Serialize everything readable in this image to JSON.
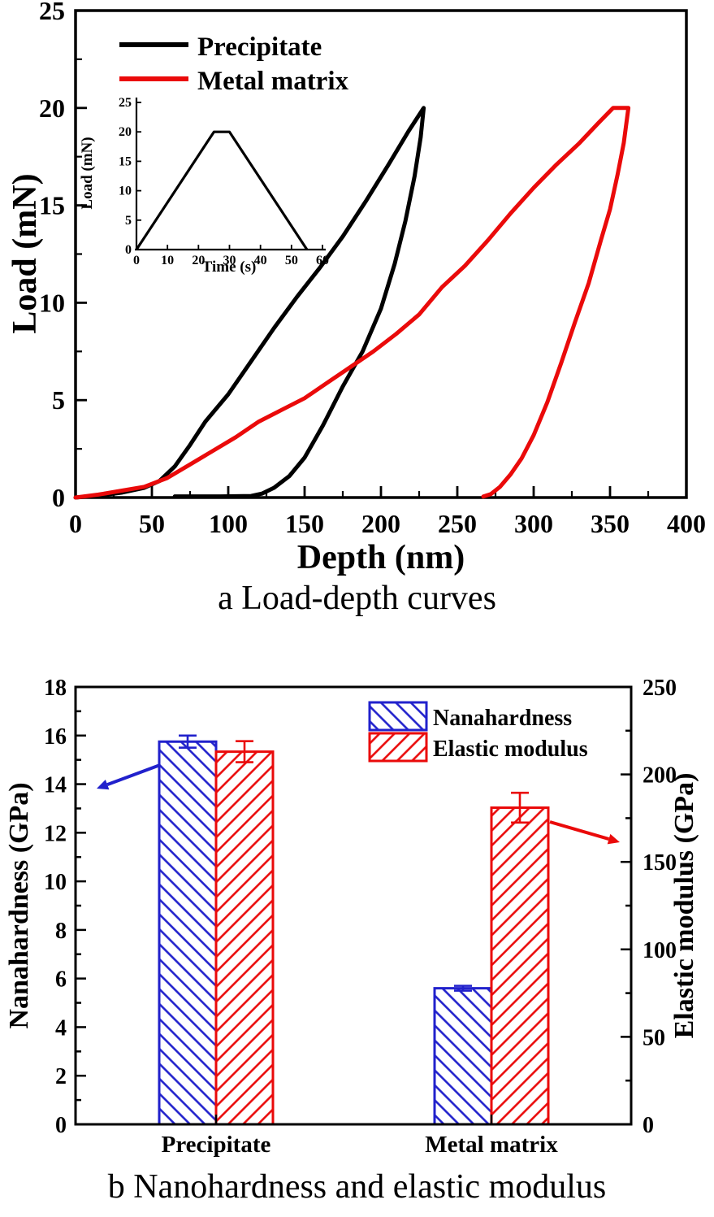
{
  "captions": {
    "a": "a Load-depth curves",
    "b": "b Nanohardness and elastic modulus"
  },
  "colors": {
    "black": "#000000",
    "red": "#ea0a0a",
    "blue": "#2121cc"
  },
  "chart_data": [
    {
      "id": "a",
      "type": "line",
      "title": "",
      "xlabel": "Depth (nm)",
      "ylabel": "Load (mN)",
      "xlim": [
        0,
        400
      ],
      "ylim": [
        0,
        25
      ],
      "x_ticks": [
        0,
        50,
        100,
        150,
        200,
        250,
        300,
        350,
        400
      ],
      "y_ticks": [
        0,
        5,
        10,
        15,
        20,
        25
      ],
      "x_minor_step": 25,
      "y_minor_step": 2.5,
      "legend_position": "top-left-inside",
      "grid": false,
      "series": [
        {
          "name": "Precipitate",
          "color": "#000000",
          "points": [
            [
              0,
              0
            ],
            [
              15,
              0.1
            ],
            [
              30,
              0.25
            ],
            [
              45,
              0.5
            ],
            [
              55,
              0.85
            ],
            [
              65,
              1.6
            ],
            [
              75,
              2.7
            ],
            [
              85,
              3.9
            ],
            [
              100,
              5.3
            ],
            [
              115,
              7.0
            ],
            [
              130,
              8.7
            ],
            [
              145,
              10.3
            ],
            [
              160,
              11.8
            ],
            [
              175,
              13.4
            ],
            [
              190,
              15.2
            ],
            [
              205,
              17.1
            ],
            [
              218,
              18.8
            ],
            [
              228,
              20
            ],
            [
              226,
              18.5
            ],
            [
              222,
              16.5
            ],
            [
              216,
              14.2
            ],
            [
              209,
              12.0
            ],
            [
              200,
              9.7
            ],
            [
              188,
              7.5
            ],
            [
              175,
              5.7
            ],
            [
              162,
              3.7
            ],
            [
              150,
              2.05
            ],
            [
              140,
              1.1
            ],
            [
              130,
              0.5
            ],
            [
              122,
              0.2
            ],
            [
              115,
              0.08
            ],
            [
              95,
              0.06
            ],
            [
              65,
              0.06
            ]
          ]
        },
        {
          "name": "Metal matrix",
          "color": "#ea0a0a",
          "points": [
            [
              0,
              0
            ],
            [
              15,
              0.15
            ],
            [
              30,
              0.35
            ],
            [
              45,
              0.55
            ],
            [
              60,
              1.0
            ],
            [
              75,
              1.7
            ],
            [
              90,
              2.4
            ],
            [
              105,
              3.1
            ],
            [
              120,
              3.9
            ],
            [
              135,
              4.5
            ],
            [
              150,
              5.1
            ],
            [
              165,
              5.9
            ],
            [
              180,
              6.7
            ],
            [
              195,
              7.5
            ],
            [
              210,
              8.4
            ],
            [
              225,
              9.4
            ],
            [
              240,
              10.8
            ],
            [
              255,
              11.9
            ],
            [
              270,
              13.2
            ],
            [
              285,
              14.6
            ],
            [
              300,
              15.9
            ],
            [
              315,
              17.1
            ],
            [
              330,
              18.2
            ],
            [
              342,
              19.2
            ],
            [
              352,
              20
            ],
            [
              362,
              20
            ],
            [
              359,
              18.2
            ],
            [
              355,
              16.6
            ],
            [
              350,
              14.8
            ],
            [
              344,
              13.2
            ],
            [
              336,
              11.0
            ],
            [
              327,
              9.0
            ],
            [
              318,
              6.9
            ],
            [
              309,
              4.9
            ],
            [
              300,
              3.2
            ],
            [
              292,
              2.0
            ],
            [
              285,
              1.2
            ],
            [
              278,
              0.55
            ],
            [
              272,
              0.18
            ],
            [
              267,
              0.05
            ]
          ]
        }
      ],
      "inset": {
        "xlabel": "Time (s)",
        "ylabel": "Load (mN)",
        "xlim": [
          0,
          60
        ],
        "ylim": [
          0,
          25
        ],
        "x_ticks": [
          0,
          10,
          20,
          30,
          40,
          50,
          60
        ],
        "y_ticks": [
          0,
          5,
          10,
          15,
          20,
          25
        ],
        "series_color": "#000000",
        "points": [
          [
            0,
            0
          ],
          [
            25,
            20
          ],
          [
            30,
            20
          ],
          [
            55,
            0
          ]
        ]
      }
    },
    {
      "id": "b",
      "type": "bar",
      "categories": [
        "Precipitate",
        "Metal matrix"
      ],
      "left_axis": {
        "label": "Nanahardness (GPa)",
        "lim": [
          0,
          18
        ],
        "ticks": [
          0,
          2,
          4,
          6,
          8,
          10,
          12,
          14,
          16,
          18
        ],
        "minor_step": 1
      },
      "right_axis": {
        "label": "Elastic modulus (GPa)",
        "lim": [
          0,
          250
        ],
        "ticks": [
          0,
          50,
          100,
          150,
          200,
          250
        ],
        "minor_step": 25
      },
      "series": [
        {
          "name": "Nanahardness",
          "axis": "left",
          "color": "#2121cc",
          "hatch": "backslash",
          "values": [
            15.75,
            5.6
          ],
          "errors": [
            0.25,
            0.1
          ]
        },
        {
          "name": "Elastic modulus",
          "axis": "right",
          "color": "#ea0a0a",
          "hatch": "slash",
          "values": [
            213,
            181
          ],
          "errors": [
            6,
            8.5
          ]
        }
      ],
      "annotations": [
        {
          "type": "arrow",
          "color": "#2121cc",
          "points_to": "Nanahardness bar",
          "direction": "left"
        },
        {
          "type": "arrow",
          "color": "#ea0a0a",
          "points_to": "right axis",
          "direction": "right"
        }
      ]
    }
  ]
}
